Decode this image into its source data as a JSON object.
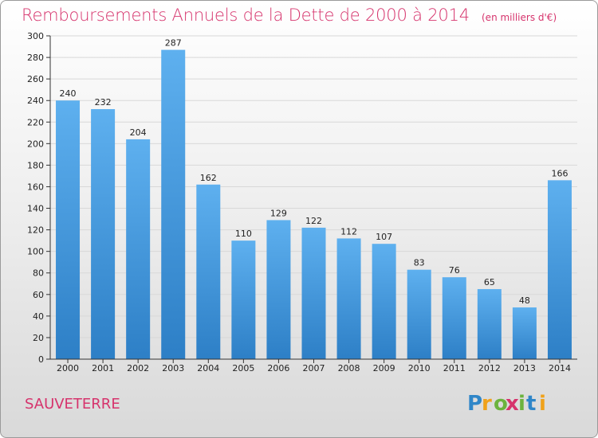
{
  "chart_data": {
    "type": "bar",
    "title": "Remboursements Annuels de la Dette de 2000 à 2014",
    "unit": "(en milliers d'€)",
    "categories": [
      "2000",
      "2001",
      "2002",
      "2003",
      "2004",
      "2005",
      "2006",
      "2007",
      "2008",
      "2009",
      "2010",
      "2011",
      "2012",
      "2013",
      "2014"
    ],
    "values": [
      240,
      232,
      204,
      287,
      162,
      110,
      129,
      122,
      112,
      107,
      83,
      76,
      65,
      48,
      166
    ],
    "ylim": [
      0,
      300
    ],
    "yticks": [
      0,
      20,
      40,
      60,
      80,
      100,
      120,
      140,
      160,
      180,
      200,
      220,
      240,
      260,
      280,
      300
    ],
    "grid": true,
    "bar_color": "#4a9be0",
    "xlabel": "",
    "ylabel": ""
  },
  "location": "SAUVETERRE",
  "logo": {
    "text": "Proxiti",
    "letters": [
      "P",
      "r",
      "o",
      "x",
      "i",
      "t",
      "i"
    ],
    "colors": [
      "#2f86c8",
      "#f0a21b",
      "#6cb33e",
      "#d6336c",
      "#6cb33e",
      "#2f86c8",
      "#f0a21b"
    ]
  },
  "colors": {
    "accent": "#d6336c",
    "grid": "#d8d8d8",
    "axis": "#333333"
  }
}
